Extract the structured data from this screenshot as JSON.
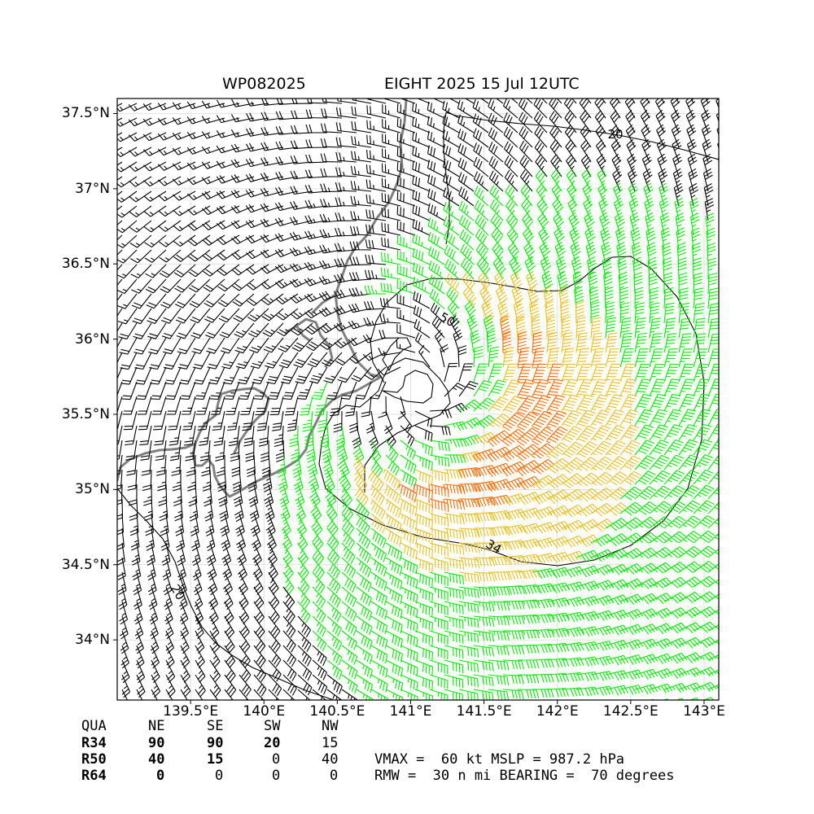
{
  "header": {
    "storm_id": "WP082025",
    "storm_desc": "EIGHT 2025 15 Jul 12UTC"
  },
  "chart_data": {
    "type": "wind-barb map",
    "title_left": "WP082025",
    "title_right": "EIGHT 2025 15 Jul 12UTC",
    "xlim": [
      139.0,
      143.1
    ],
    "ylim": [
      33.6,
      37.6
    ],
    "x_ticks": [
      139.5,
      140.0,
      140.5,
      141.0,
      141.5,
      142.0,
      142.5,
      143.0
    ],
    "x_tick_labels": [
      "139.5°E",
      "140°E",
      "140.5°E",
      "141°E",
      "141.5°E",
      "142°E",
      "142.5°E",
      "143°E"
    ],
    "y_ticks": [
      34.0,
      34.5,
      35.0,
      35.5,
      36.0,
      36.5,
      37.0,
      37.5
    ],
    "y_tick_labels": [
      "34°N",
      "34.5°N",
      "35°N",
      "35.5°N",
      "36°N",
      "36.5°N",
      "37°N",
      "37.5°N"
    ],
    "grid": true,
    "storm_center": [
      141.05,
      35.7
    ],
    "contour_labels": [
      "20",
      "34",
      "50",
      "20"
    ],
    "barb_colors": {
      "below_34": "#000000",
      "34_to_50": "#00ee00",
      "50_to_64": "#e8c020",
      "above_64": "#ff6a00"
    },
    "coast_color": "#808080",
    "contour_color": "#000000"
  },
  "radii_table": {
    "header": [
      "QUA",
      "NE",
      "SE",
      "SW",
      "NW"
    ],
    "rows": [
      {
        "label": "R34",
        "values": [
          "90",
          "90",
          "20",
          "15"
        ]
      },
      {
        "label": "R50",
        "values": [
          "40",
          "15",
          "0",
          "40"
        ]
      },
      {
        "label": "R64",
        "values": [
          "0",
          "0",
          "0",
          "0"
        ]
      }
    ]
  },
  "summary": {
    "line1": "VMAX =  60 kt MSLP = 987.2 hPa",
    "line2": "RMW =  30 n mi BEARING =  70 degrees"
  }
}
